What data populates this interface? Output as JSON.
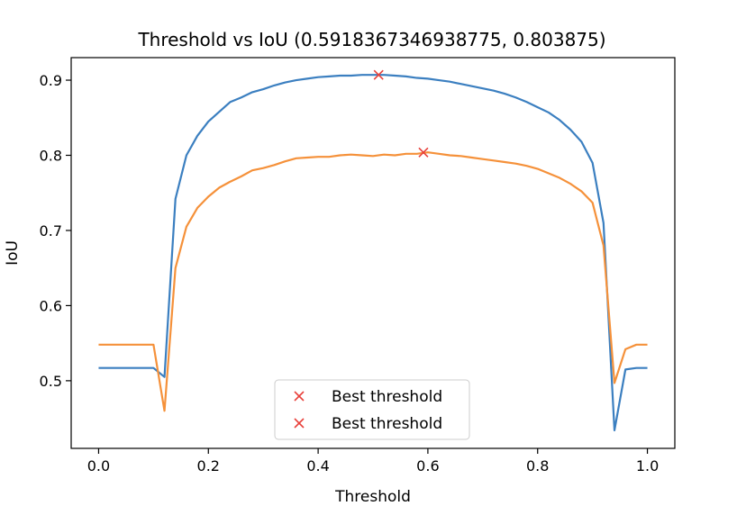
{
  "chart_data": {
    "type": "line",
    "title": "Threshold vs IoU (0.5918367346938775, 0.803875)",
    "xlabel": "Threshold",
    "ylabel": "IoU",
    "xlim": [
      -0.05,
      1.05
    ],
    "ylim": [
      0.41,
      0.93
    ],
    "xticks": [
      0.0,
      0.2,
      0.4,
      0.6,
      0.8,
      1.0
    ],
    "xtick_labels": [
      "0.0",
      "0.2",
      "0.4",
      "0.6",
      "0.8",
      "1.0"
    ],
    "yticks": [
      0.5,
      0.6,
      0.7,
      0.8,
      0.9
    ],
    "ytick_labels": [
      "0.5",
      "0.6",
      "0.7",
      "0.8",
      "0.9"
    ],
    "grid": false,
    "legend_position": "lower center",
    "series": [
      {
        "color": "#3b7fc0",
        "x": [
          0.0,
          0.1,
          0.12,
          0.14,
          0.16,
          0.18,
          0.2,
          0.22,
          0.24,
          0.26,
          0.28,
          0.3,
          0.32,
          0.34,
          0.36,
          0.38,
          0.4,
          0.42,
          0.44,
          0.46,
          0.48,
          0.5,
          0.52,
          0.54,
          0.56,
          0.58,
          0.6,
          0.62,
          0.64,
          0.66,
          0.68,
          0.7,
          0.72,
          0.74,
          0.76,
          0.78,
          0.8,
          0.82,
          0.84,
          0.86,
          0.88,
          0.9,
          0.92,
          0.94,
          0.96,
          0.98,
          1.0
        ],
        "y": [
          0.517,
          0.517,
          0.505,
          0.742,
          0.8,
          0.826,
          0.845,
          0.858,
          0.871,
          0.877,
          0.884,
          0.888,
          0.893,
          0.897,
          0.9,
          0.902,
          0.904,
          0.905,
          0.906,
          0.906,
          0.907,
          0.907,
          0.907,
          0.906,
          0.905,
          0.903,
          0.902,
          0.9,
          0.898,
          0.895,
          0.892,
          0.889,
          0.886,
          0.882,
          0.877,
          0.871,
          0.864,
          0.857,
          0.847,
          0.834,
          0.818,
          0.79,
          0.71,
          0.434,
          0.515,
          0.517,
          0.517
        ]
      },
      {
        "color": "#f5913a",
        "x": [
          0.0,
          0.1,
          0.12,
          0.14,
          0.16,
          0.18,
          0.2,
          0.22,
          0.24,
          0.26,
          0.28,
          0.3,
          0.32,
          0.34,
          0.36,
          0.38,
          0.4,
          0.42,
          0.44,
          0.46,
          0.48,
          0.5,
          0.52,
          0.54,
          0.56,
          0.58,
          0.6,
          0.62,
          0.64,
          0.66,
          0.68,
          0.7,
          0.72,
          0.74,
          0.76,
          0.78,
          0.8,
          0.82,
          0.84,
          0.86,
          0.88,
          0.9,
          0.92,
          0.94,
          0.96,
          0.98,
          1.0
        ],
        "y": [
          0.548,
          0.548,
          0.46,
          0.65,
          0.705,
          0.73,
          0.745,
          0.757,
          0.765,
          0.772,
          0.78,
          0.783,
          0.787,
          0.792,
          0.796,
          0.797,
          0.798,
          0.798,
          0.8,
          0.801,
          0.8,
          0.799,
          0.801,
          0.8,
          0.802,
          0.802,
          0.804,
          0.802,
          0.8,
          0.799,
          0.797,
          0.795,
          0.793,
          0.791,
          0.789,
          0.786,
          0.782,
          0.776,
          0.77,
          0.762,
          0.752,
          0.737,
          0.68,
          0.497,
          0.542,
          0.548,
          0.548
        ]
      }
    ],
    "markers": [
      {
        "label": "Best threshold",
        "x": 0.5102040816326531,
        "y": 0.907,
        "color": "#e8413b",
        "symbol": "x"
      },
      {
        "label": "Best threshold",
        "x": 0.5918367346938775,
        "y": 0.803875,
        "color": "#e8413b",
        "symbol": "x"
      }
    ],
    "legend": [
      "Best threshold",
      "Best threshold"
    ]
  }
}
